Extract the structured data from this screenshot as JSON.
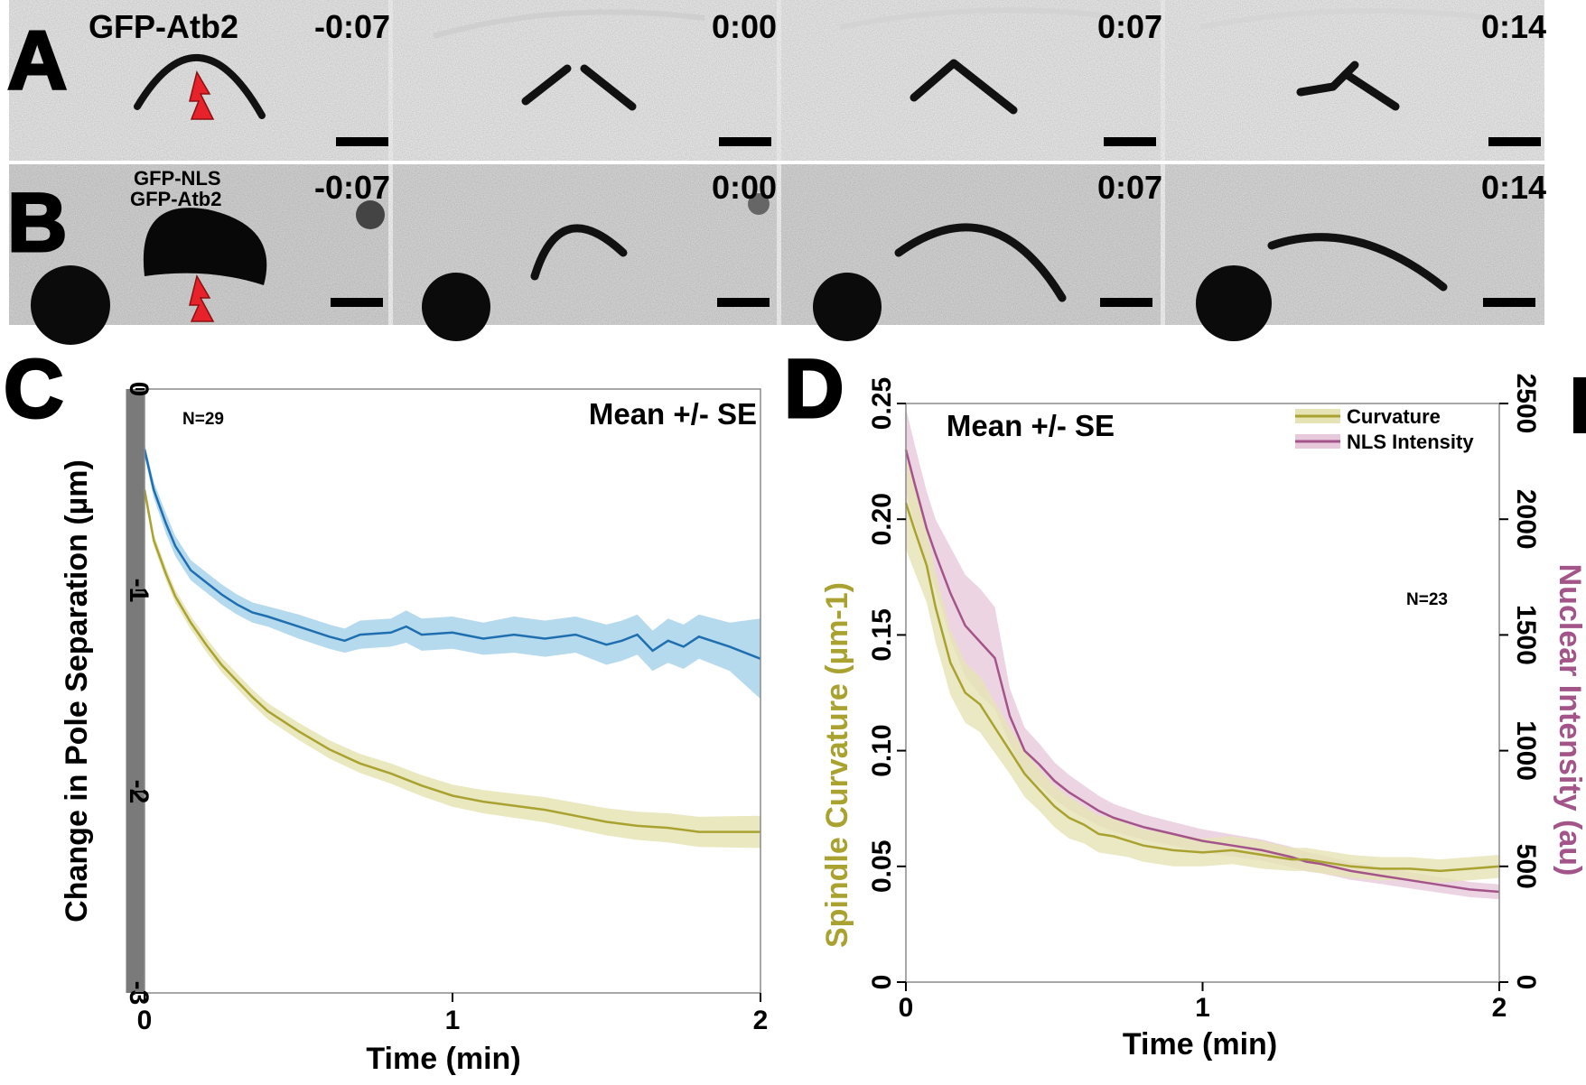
{
  "panels": {
    "A": {
      "letter": "A",
      "channel_label": "GFP-Atb2",
      "timestamps": [
        "-0:07",
        "0:00",
        "0:07",
        "0:14"
      ]
    },
    "B": {
      "letter": "B",
      "channel_label_line1": "GFP-NLS",
      "channel_label_line2": "GFP-Atb2",
      "timestamps": [
        "-0:07",
        "0:00",
        "0:07",
        "0:14"
      ]
    },
    "C": {
      "letter": "C",
      "n_label": "N=29",
      "stat_label": "Mean +/- SE"
    },
    "D": {
      "letter": "D",
      "n_label": "N=23",
      "stat_label": "Mean +/- SE"
    }
  },
  "colors": {
    "blue": "#1f6fb0",
    "blue_band": "#a9d3ea",
    "olive": "#a9a230",
    "olive_band": "#e6e4b4",
    "mauve": "#a35489",
    "mauve_band": "#e8c9dc",
    "ablation_marker": "#e8222a"
  },
  "chart_data": [
    {
      "panel": "C",
      "type": "line",
      "title": "",
      "xlabel": "Time (min)",
      "ylabel": "Change in Pole Separation (µm)",
      "xlim": [
        0,
        2
      ],
      "ylim": [
        -3,
        0
      ],
      "xticks": [
        "0",
        "1",
        "2"
      ],
      "yticks": [
        "0",
        "-1",
        "-2",
        "-3"
      ],
      "shaded_interval": [
        -0.06,
        0
      ],
      "series": [
        {
          "color": "blue",
          "x": [
            0,
            0.03,
            0.07,
            0.1,
            0.15,
            0.2,
            0.25,
            0.3,
            0.35,
            0.4,
            0.5,
            0.6,
            0.65,
            0.7,
            0.8,
            0.85,
            0.9,
            1.0,
            1.1,
            1.2,
            1.3,
            1.4,
            1.5,
            1.55,
            1.6,
            1.65,
            1.7,
            1.75,
            1.8,
            1.9,
            2.0
          ],
          "y": [
            -0.3,
            -0.5,
            -0.67,
            -0.78,
            -0.9,
            -0.96,
            -1.02,
            -1.07,
            -1.11,
            -1.13,
            -1.18,
            -1.23,
            -1.25,
            -1.22,
            -1.21,
            -1.18,
            -1.22,
            -1.21,
            -1.24,
            -1.22,
            -1.24,
            -1.22,
            -1.27,
            -1.25,
            -1.22,
            -1.3,
            -1.25,
            -1.28,
            -1.23,
            -1.28,
            -1.34
          ],
          "se": [
            0.03,
            0.04,
            0.05,
            0.05,
            0.05,
            0.05,
            0.05,
            0.05,
            0.05,
            0.05,
            0.06,
            0.06,
            0.06,
            0.07,
            0.07,
            0.08,
            0.08,
            0.08,
            0.08,
            0.09,
            0.09,
            0.09,
            0.1,
            0.1,
            0.1,
            0.1,
            0.11,
            0.11,
            0.11,
            0.12,
            0.2
          ]
        },
        {
          "color": "olive",
          "x": [
            0,
            0.03,
            0.07,
            0.1,
            0.15,
            0.2,
            0.25,
            0.3,
            0.35,
            0.4,
            0.5,
            0.6,
            0.7,
            0.8,
            0.9,
            1.0,
            1.1,
            1.2,
            1.3,
            1.4,
            1.5,
            1.6,
            1.7,
            1.8,
            1.9,
            2.0
          ],
          "y": [
            -0.5,
            -0.75,
            -0.92,
            -1.03,
            -1.16,
            -1.27,
            -1.37,
            -1.45,
            -1.53,
            -1.6,
            -1.7,
            -1.79,
            -1.86,
            -1.91,
            -1.97,
            -2.02,
            -2.05,
            -2.07,
            -2.09,
            -2.12,
            -2.15,
            -2.17,
            -2.18,
            -2.2,
            -2.2,
            -2.2
          ]
        }
      ]
    },
    {
      "panel": "D",
      "type": "line",
      "title": "",
      "xlabel": "Time (min)",
      "ylabel_left": "Spindle Curvature (µm-1)",
      "ylabel_right": "Nuclear Intensity (au)",
      "xlim": [
        0,
        2
      ],
      "ylim_left": [
        0,
        0.25
      ],
      "ylim_right": [
        0,
        2500
      ],
      "xticks": [
        "0",
        "1",
        "2"
      ],
      "yticks_left": [
        "0",
        "0.05",
        "0.10",
        "0.15",
        "0.20",
        "0.25"
      ],
      "yticks_right": [
        "0",
        "500",
        "1000",
        "1500",
        "2000",
        "2500"
      ],
      "legend_position": "top-right",
      "series": [
        {
          "name": "Curvature",
          "color": "olive",
          "axis": "left",
          "x": [
            0,
            0.03,
            0.07,
            0.1,
            0.15,
            0.2,
            0.25,
            0.3,
            0.35,
            0.4,
            0.45,
            0.5,
            0.55,
            0.6,
            0.65,
            0.7,
            0.75,
            0.8,
            0.9,
            1.0,
            1.1,
            1.2,
            1.3,
            1.35,
            1.4,
            1.5,
            1.6,
            1.7,
            1.8,
            1.9,
            2.0
          ],
          "y": [
            0.207,
            0.195,
            0.18,
            0.162,
            0.138,
            0.125,
            0.12,
            0.11,
            0.1,
            0.09,
            0.083,
            0.076,
            0.071,
            0.068,
            0.064,
            0.063,
            0.061,
            0.059,
            0.057,
            0.056,
            0.057,
            0.055,
            0.053,
            0.053,
            0.052,
            0.05,
            0.049,
            0.049,
            0.048,
            0.049,
            0.05
          ],
          "se": [
            0.02,
            0.018,
            0.016,
            0.015,
            0.014,
            0.013,
            0.012,
            0.011,
            0.01,
            0.01,
            0.009,
            0.009,
            0.009,
            0.008,
            0.008,
            0.008,
            0.007,
            0.007,
            0.007,
            0.006,
            0.006,
            0.006,
            0.005,
            0.005,
            0.005,
            0.005,
            0.005,
            0.005,
            0.005,
            0.005,
            0.005
          ]
        },
        {
          "name": "NLS Intensity",
          "color": "mauve",
          "axis": "right",
          "x": [
            0,
            0.03,
            0.07,
            0.1,
            0.15,
            0.2,
            0.25,
            0.3,
            0.35,
            0.4,
            0.45,
            0.5,
            0.55,
            0.6,
            0.65,
            0.7,
            0.75,
            0.8,
            0.9,
            1.0,
            1.1,
            1.2,
            1.3,
            1.35,
            1.4,
            1.5,
            1.6,
            1.7,
            1.8,
            1.9,
            2.0
          ],
          "y": [
            2300,
            2150,
            1960,
            1850,
            1680,
            1540,
            1470,
            1400,
            1150,
            1000,
            940,
            870,
            820,
            780,
            740,
            710,
            690,
            670,
            640,
            610,
            590,
            570,
            540,
            520,
            510,
            480,
            460,
            440,
            420,
            400,
            390
          ],
          "se": [
            180,
            170,
            160,
            150,
            200,
            220,
            230,
            220,
            120,
            100,
            90,
            80,
            75,
            70,
            65,
            60,
            58,
            55,
            52,
            50,
            48,
            46,
            44,
            42,
            40,
            38,
            36,
            35,
            34,
            33,
            32
          ]
        }
      ]
    }
  ]
}
